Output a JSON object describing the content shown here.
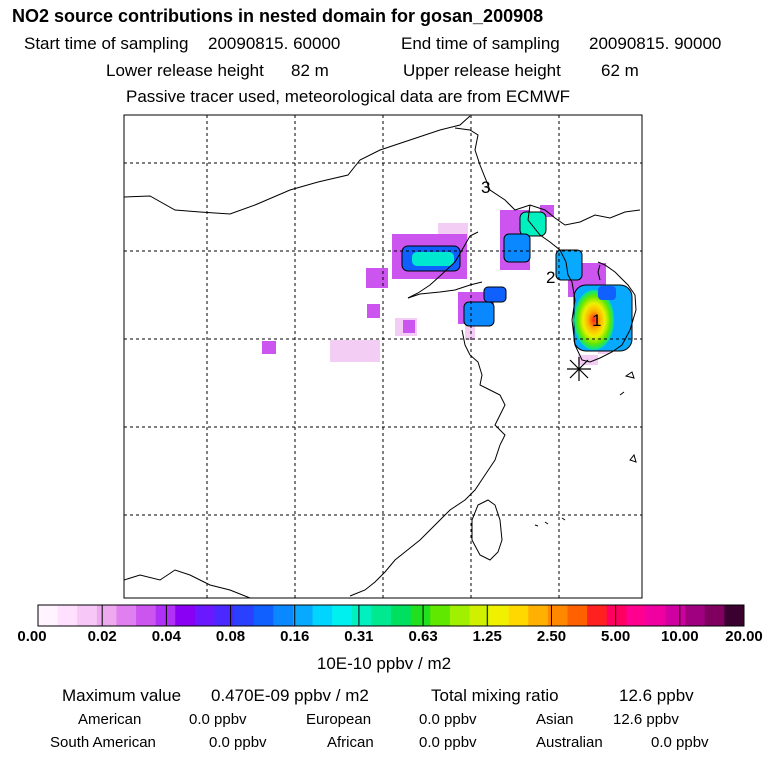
{
  "title": "NO2 source contributions in nested domain for gosan_200908",
  "header": {
    "start_label": "Start time of sampling",
    "start_value": "20090815. 60000",
    "end_label": "End time of sampling",
    "end_value": "20090815. 90000",
    "lower_label": "Lower release height",
    "lower_value": "82 m",
    "upper_label": "Upper release height",
    "upper_value": "62 m",
    "note": "Passive tracer used, meteorological data are from ECMWF"
  },
  "map": {
    "region_labels": [
      "1",
      "2",
      "3"
    ],
    "receptor_marker": "asterisk-icon"
  },
  "colorbar": {
    "ticks": [
      "0.00",
      "0.02",
      "0.04",
      "0.08",
      "0.16",
      "0.31",
      "0.63",
      "1.25",
      "2.50",
      "5.00",
      "10.00",
      "20.00"
    ],
    "colors": [
      "#fff4ff",
      "#ffe0ff",
      "#f7c8f7",
      "#eeaaee",
      "#e080f0",
      "#cc55f0",
      "#b030f5",
      "#8a00f5",
      "#6a18ff",
      "#4a28ff",
      "#2a40ff",
      "#1060ff",
      "#0a88ff",
      "#08aaff",
      "#00d4ff",
      "#00f0f0",
      "#00f0c0",
      "#00e890",
      "#00e060",
      "#20e020",
      "#60e800",
      "#a0f000",
      "#d0f000",
      "#f0f000",
      "#ffd800",
      "#ffb000",
      "#ff8800",
      "#ff6000",
      "#ff2020",
      "#ff0060",
      "#ff0090",
      "#f000a0",
      "#d000a0",
      "#a00080",
      "#800060",
      "#3a0030"
    ],
    "unit": "10E-10 ppbv / m2"
  },
  "summary": {
    "max_label": "Maximum value",
    "max_value": "0.470E-09 ppbv / m2",
    "total_label": "Total mixing ratio",
    "total_value": "12.6 ppbv",
    "american_label": "American",
    "american_value": "0.0 ppbv",
    "european_label": "European",
    "european_value": "0.0 ppbv",
    "asian_label": "Asian",
    "asian_value": "12.6 ppbv",
    "south_american_label": "South American",
    "south_american_value": "0.0 ppbv",
    "african_label": "African",
    "african_value": "0.0 ppbv",
    "australian_label": "Australian",
    "australian_value": "0.0 ppbv"
  }
}
